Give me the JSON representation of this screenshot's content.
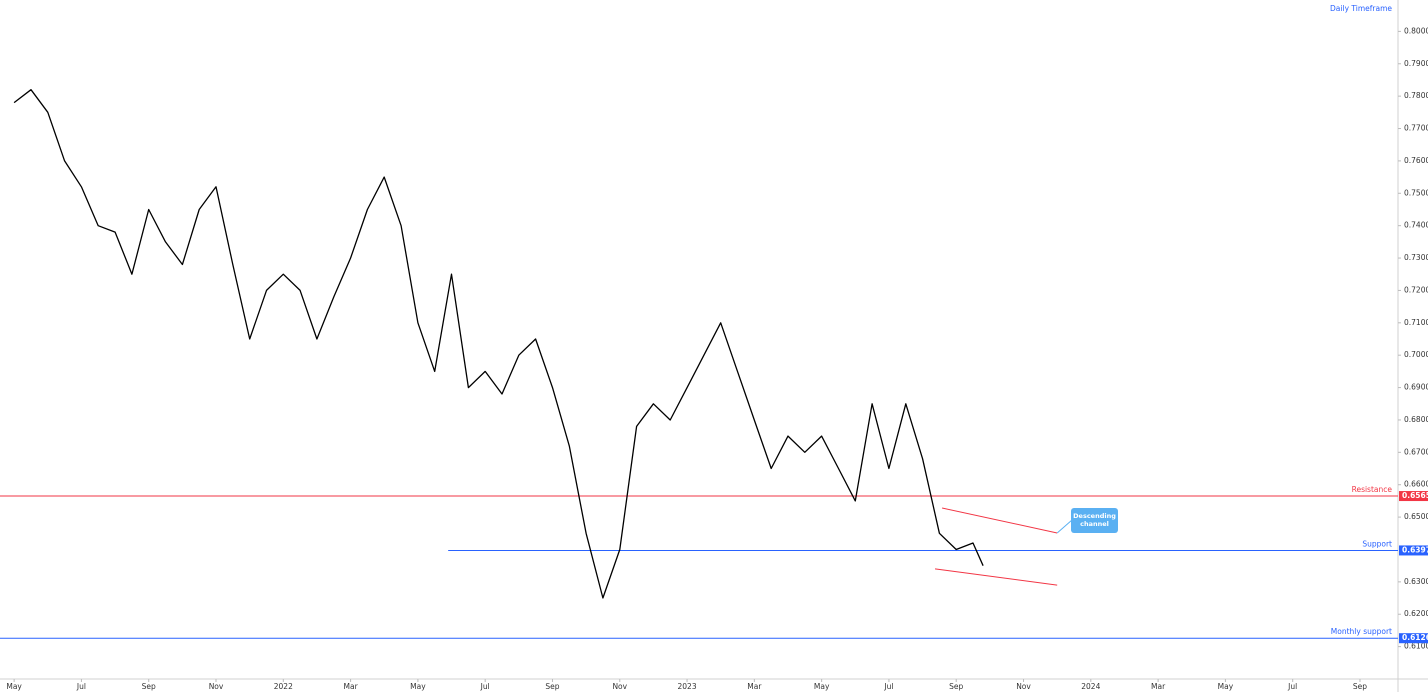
{
  "chart_data": {
    "type": "line",
    "title": "Daily Timeframe",
    "x": [
      0,
      0.5,
      1,
      1.5,
      2,
      2.5,
      3,
      3.5,
      4,
      4.5,
      5,
      5.5,
      6,
      6.5,
      7,
      7.5,
      8,
      8.5,
      9,
      9.5,
      10,
      10.5,
      11,
      11.5,
      12,
      12.5,
      13,
      13.5,
      14,
      14.5,
      15,
      15.5,
      16,
      16.5,
      17,
      17.5,
      18,
      18.5,
      19,
      19.5,
      20,
      20.5,
      21,
      21.5,
      22,
      22.5,
      23,
      23.5,
      24,
      24.5,
      25,
      25.5,
      26,
      26.5,
      27,
      27.5,
      28,
      28.5,
      28.8
    ],
    "series": [
      {
        "color": "#000000",
        "values": [
          0.778,
          0.782,
          0.775,
          0.76,
          0.752,
          0.74,
          0.738,
          0.725,
          0.745,
          0.735,
          0.728,
          0.745,
          0.752,
          0.728,
          0.705,
          0.72,
          0.725,
          0.72,
          0.705,
          0.718,
          0.73,
          0.745,
          0.755,
          0.74,
          0.71,
          0.695,
          0.725,
          0.69,
          0.695,
          0.688,
          0.7,
          0.705,
          0.69,
          0.672,
          0.645,
          0.625,
          0.64,
          0.678,
          0.685,
          0.68,
          0.69,
          0.7,
          0.71,
          0.695,
          0.68,
          0.665,
          0.675,
          0.67,
          0.675,
          0.665,
          0.655,
          0.685,
          0.665,
          0.685,
          0.668,
          0.645,
          0.64,
          0.642,
          0.635
        ]
      }
    ],
    "xlim": [
      -0.42,
      41.13
    ],
    "ylim": [
      0.6,
      0.81
    ],
    "xticks": [
      {
        "value": 0,
        "label": "May"
      },
      {
        "value": 2,
        "label": "Jul"
      },
      {
        "value": 4,
        "label": "Sep"
      },
      {
        "value": 6,
        "label": "Nov"
      },
      {
        "value": 8,
        "label": "2022"
      },
      {
        "value": 10,
        "label": "Mar"
      },
      {
        "value": 12,
        "label": "May"
      },
      {
        "value": 14,
        "label": "Jul"
      },
      {
        "value": 16,
        "label": "Sep"
      },
      {
        "value": 18,
        "label": "Nov"
      },
      {
        "value": 20,
        "label": "2023"
      },
      {
        "value": 22,
        "label": "Mar"
      },
      {
        "value": 24,
        "label": "May"
      },
      {
        "value": 26,
        "label": "Jul"
      },
      {
        "value": 28,
        "label": "Sep"
      },
      {
        "value": 30,
        "label": "Nov"
      },
      {
        "value": 32,
        "label": "2024"
      },
      {
        "value": 34,
        "label": "Mar"
      },
      {
        "value": 36,
        "label": "May"
      },
      {
        "value": 38,
        "label": "Jul"
      },
      {
        "value": 40,
        "label": "Sep"
      }
    ],
    "yticks": [
      {
        "value": 0.61,
        "label": "0.61000"
      },
      {
        "value": 0.62,
        "label": "0.62000"
      },
      {
        "value": 0.63,
        "label": "0.63000"
      },
      {
        "value": 0.65,
        "label": "0.65000"
      },
      {
        "value": 0.66,
        "label": "0.66000"
      },
      {
        "value": 0.67,
        "label": "0.67000"
      },
      {
        "value": 0.68,
        "label": "0.68000"
      },
      {
        "value": 0.69,
        "label": "0.69000"
      },
      {
        "value": 0.7,
        "label": "0.70000"
      },
      {
        "value": 0.71,
        "label": "0.71000"
      },
      {
        "value": 0.72,
        "label": "0.72000"
      },
      {
        "value": 0.73,
        "label": "0.73000"
      },
      {
        "value": 0.74,
        "label": "0.74000"
      },
      {
        "value": 0.75,
        "label": "0.75000"
      },
      {
        "value": 0.76,
        "label": "0.76000"
      },
      {
        "value": 0.77,
        "label": "0.77000"
      },
      {
        "value": 0.78,
        "label": "0.78000"
      },
      {
        "value": 0.79,
        "label": "0.79000"
      },
      {
        "value": 0.8,
        "label": "0.80000"
      }
    ],
    "levels": [
      {
        "name": "Resistance",
        "value": 0.6565,
        "value_label": "0.65650",
        "color": "#f23645"
      },
      {
        "name": "Support",
        "value": 0.6397,
        "value_label": "0.63970",
        "color": "#2962ff",
        "x_start": 12.9
      },
      {
        "name": "Monthly support",
        "value": 0.6126,
        "value_label": "0.61260",
        "color": "#2962ff"
      }
    ],
    "channel": {
      "annotation": "Descending channel",
      "color": "#f23645",
      "upper": {
        "x": [
          27.58,
          31.0
        ],
        "y": [
          0.6528,
          0.6451
        ]
      },
      "lower": {
        "x": [
          27.37,
          31.0
        ],
        "y": [
          0.634,
          0.629
        ]
      }
    }
  }
}
